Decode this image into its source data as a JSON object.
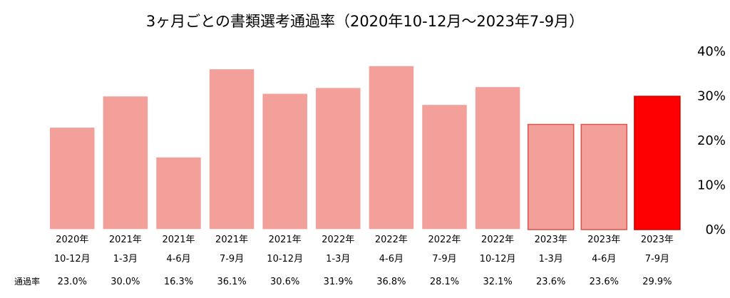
{
  "chart_data": {
    "type": "bar",
    "title": "3ヶ月ごとの書類選考通過率（2020年10-12月～2023年7-9月）",
    "xlabel": "",
    "ylabel": "",
    "ylim": [
      0,
      40
    ],
    "y_ticks": [
      "0%",
      "10%",
      "20%",
      "30%",
      "40%"
    ],
    "y_axis_position": "right",
    "grid": false,
    "legend": "none",
    "categories": [
      [
        "2020年",
        "10-12月"
      ],
      [
        "2021年",
        "1-3月"
      ],
      [
        "2021年",
        "4-6月"
      ],
      [
        "2021年",
        "7-9月"
      ],
      [
        "2021年",
        "10-12月"
      ],
      [
        "2022年",
        "1-3月"
      ],
      [
        "2022年",
        "4-6月"
      ],
      [
        "2022年",
        "7-9月"
      ],
      [
        "2022年",
        "10-12月"
      ],
      [
        "2023年",
        "1-3月"
      ],
      [
        "2023年",
        "4-6月"
      ],
      [
        "2023年",
        "7-9月"
      ]
    ],
    "values": [
      23.0,
      30.0,
      16.3,
      36.1,
      30.6,
      31.9,
      36.8,
      28.1,
      32.1,
      23.6,
      23.6,
      29.9
    ],
    "value_labels": [
      "23.0%",
      "30.0%",
      "16.3%",
      "36.1%",
      "30.6%",
      "31.9%",
      "36.8%",
      "28.1%",
      "32.1%",
      "23.6%",
      "23.6%",
      "29.9%"
    ],
    "table_row_header": "通過率",
    "colors": {
      "bar": "#f4a09a",
      "bar_stroke": "#ffffff",
      "highlight": "#ff0000",
      "highlight_stroke": "#cc0000",
      "outlined_stroke": "#d9534f"
    },
    "highlight_index": 11,
    "outlined_indices": [
      9,
      10
    ]
  }
}
